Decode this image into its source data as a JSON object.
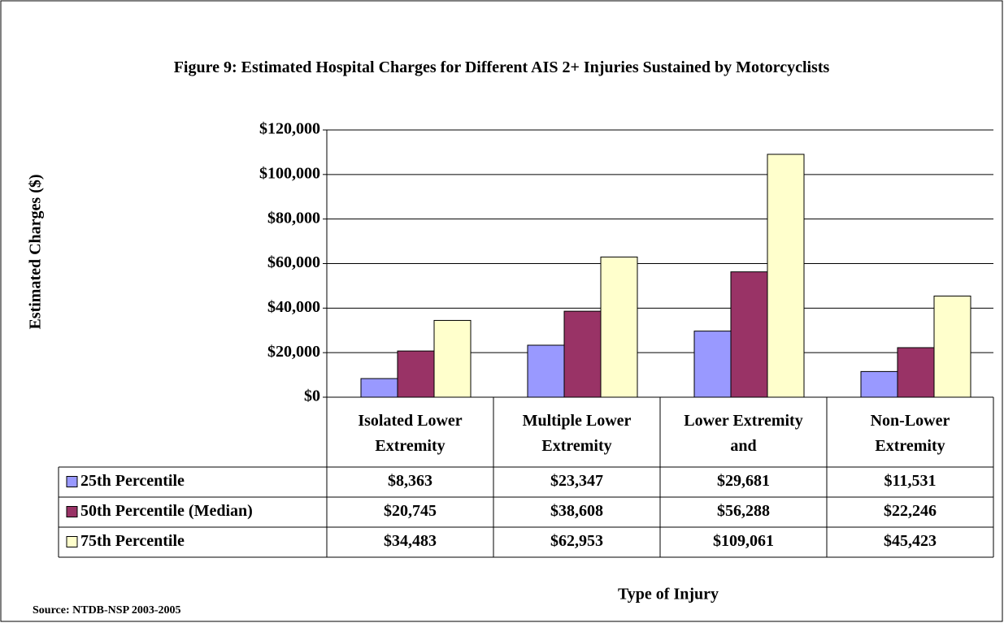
{
  "chart_data": {
    "type": "bar",
    "title": "Figure 9: Estimated Hospital Charges for Different AIS 2+ Injuries Sustained by Motorcyclists",
    "y_label": "Estimated Charges ($)",
    "x_label": "Type of Injury",
    "source": "Source: NTDB-NSP 2003-2005",
    "categories": [
      "Isolated Lower Extremity",
      "Multiple Lower Extremity",
      "Lower Extremity and",
      "Non-Lower Extremity"
    ],
    "series": [
      {
        "name": "25th Percentile",
        "color": "#9999ff",
        "values": [
          8363,
          23347,
          29681,
          11531
        ],
        "value_labels": [
          "$8,363",
          "$23,347",
          "$29,681",
          "$11,531"
        ]
      },
      {
        "name": "50th Percentile (Median)",
        "color": "#993366",
        "values": [
          20745,
          38608,
          56288,
          22246
        ],
        "value_labels": [
          "$20,745",
          "$38,608",
          "$56,288",
          "$22,246"
        ]
      },
      {
        "name": "75th Percentile",
        "color": "#ffffcc",
        "values": [
          34483,
          62953,
          109061,
          45423
        ],
        "value_labels": [
          "$34,483",
          "$62,953",
          "$109,061",
          "$45,423"
        ]
      }
    ],
    "ylim": [
      0,
      120000
    ],
    "yticks": [
      {
        "value": 0,
        "label": "$0"
      },
      {
        "value": 20000,
        "label": "$20,000"
      },
      {
        "value": 40000,
        "label": "$40,000"
      },
      {
        "value": 60000,
        "label": "$60,000"
      },
      {
        "value": 80000,
        "label": "$80,000"
      },
      {
        "value": 100000,
        "label": "$100,000"
      },
      {
        "value": 120000,
        "label": "$120,000"
      }
    ],
    "grid": true
  }
}
